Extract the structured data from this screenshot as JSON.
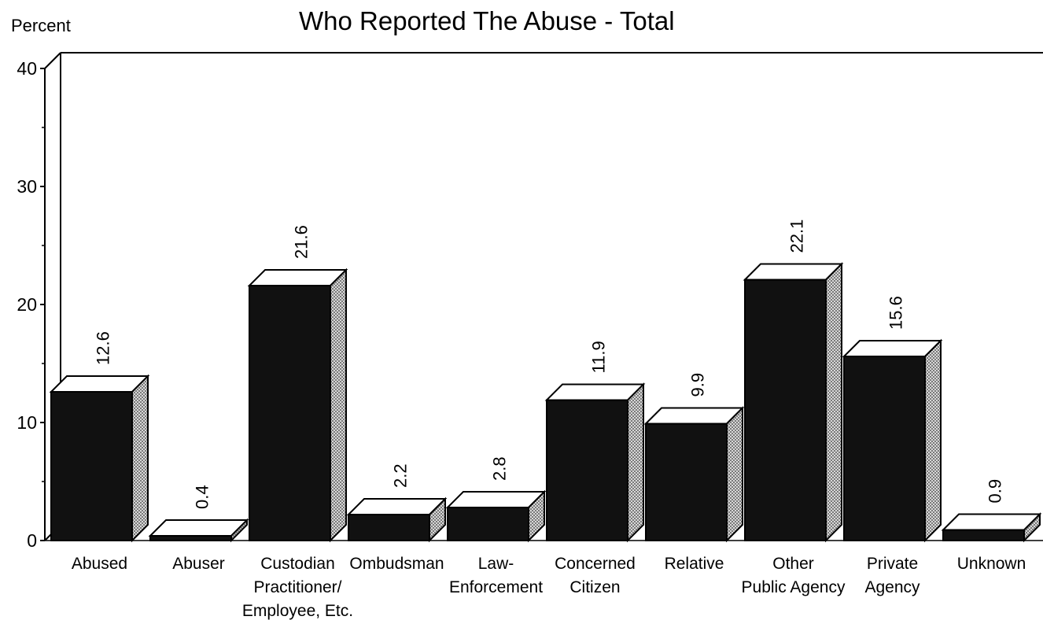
{
  "chart_data": {
    "type": "bar",
    "title": "Who Reported The Abuse - Total",
    "ylabel": "Percent",
    "xlabel": "",
    "ylim": [
      0,
      40
    ],
    "yticks": [
      "0",
      "10",
      "20",
      "30",
      "40"
    ],
    "categories": [
      [
        "Abused"
      ],
      [
        "Abuser"
      ],
      [
        "Custodian",
        "Practitioner/",
        "Employee, Etc."
      ],
      [
        "Ombudsman"
      ],
      [
        "Law-",
        "Enforcement"
      ],
      [
        "Concerned",
        "Citizen"
      ],
      [
        "Relative"
      ],
      [
        "Other",
        "Public Agency"
      ],
      [
        "Private",
        "Agency"
      ],
      [
        "Unknown"
      ]
    ],
    "values": [
      12.6,
      0.4,
      21.6,
      2.2,
      2.8,
      11.9,
      9.9,
      22.1,
      15.6,
      0.9
    ],
    "value_labels": [
      "12.6",
      "0.4",
      "21.6",
      "2.2",
      "2.8",
      "11.9",
      "9.9",
      "22.1",
      "15.6",
      "0.9"
    ],
    "grid": false,
    "style": "3d",
    "colors": {
      "bar_front": "#111111",
      "bar_top": "#ffffff",
      "bar_side": "#bdbdbd"
    }
  }
}
